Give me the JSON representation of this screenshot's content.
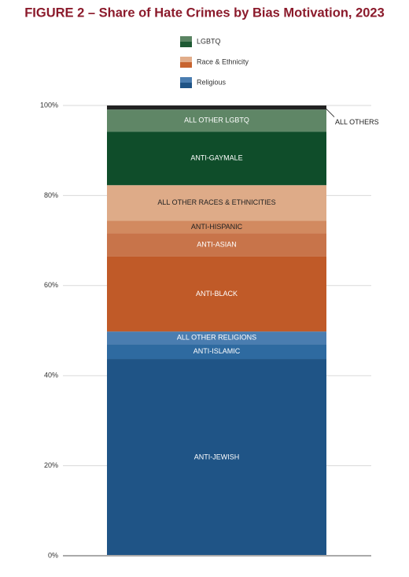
{
  "chart_data": {
    "type": "stacked_bar",
    "title": "FIGURE 2 – Share of Hate Crimes by Bias Motivation, 2023",
    "ylim": [
      0,
      100
    ],
    "yticks": [
      {
        "value": 0,
        "label": "0%"
      },
      {
        "value": 20,
        "label": "20%"
      },
      {
        "value": 40,
        "label": "40%"
      },
      {
        "value": 60,
        "label": "60%"
      },
      {
        "value": 80,
        "label": "80%"
      },
      {
        "value": 100,
        "label": "100%"
      }
    ],
    "grid": true,
    "series": [
      {
        "name": "Religious",
        "legend_colors": [
          "#4a7db0",
          "#1f5486"
        ],
        "segments": [
          {
            "label": "ANTI-JEWISH",
            "value": 43.7,
            "color": "#1f5486"
          },
          {
            "label": "ANTI-ISLAMIC",
            "value": 3.3,
            "color": "#2e6aa0"
          },
          {
            "label": "ALL OTHER RELIGIONS",
            "value": 2.8,
            "color": "#4a7db0"
          }
        ]
      },
      {
        "name": "Race & Ethnicity",
        "legend_colors": [
          "#e2ad8a",
          "#c8642f"
        ],
        "segments": [
          {
            "label": "ANTI-BLACK",
            "value": 16.7,
            "color": "#c05a28"
          },
          {
            "label": "ANTI-ASIAN",
            "value": 5.1,
            "color": "#c8744a"
          },
          {
            "label": "ANTI-HISPANIC",
            "value": 2.8,
            "color": "#d28a60"
          },
          {
            "label": "ALL OTHER RACES & ETHNICITIES",
            "value": 7.9,
            "color": "#deab88"
          }
        ]
      },
      {
        "name": "LGBTQ",
        "legend_colors": [
          "#5a8462",
          "#1e5a33"
        ],
        "segments": [
          {
            "label": "ANTI-GAYMALE",
            "value": 11.9,
            "color": "#0f4d2a"
          },
          {
            "label": "ALL OTHER LGBTQ",
            "value": 4.9,
            "color": "#5f8666"
          }
        ]
      }
    ],
    "other": {
      "label": "ALL OTHERS",
      "value": 0.9,
      "color": "#222222"
    }
  }
}
